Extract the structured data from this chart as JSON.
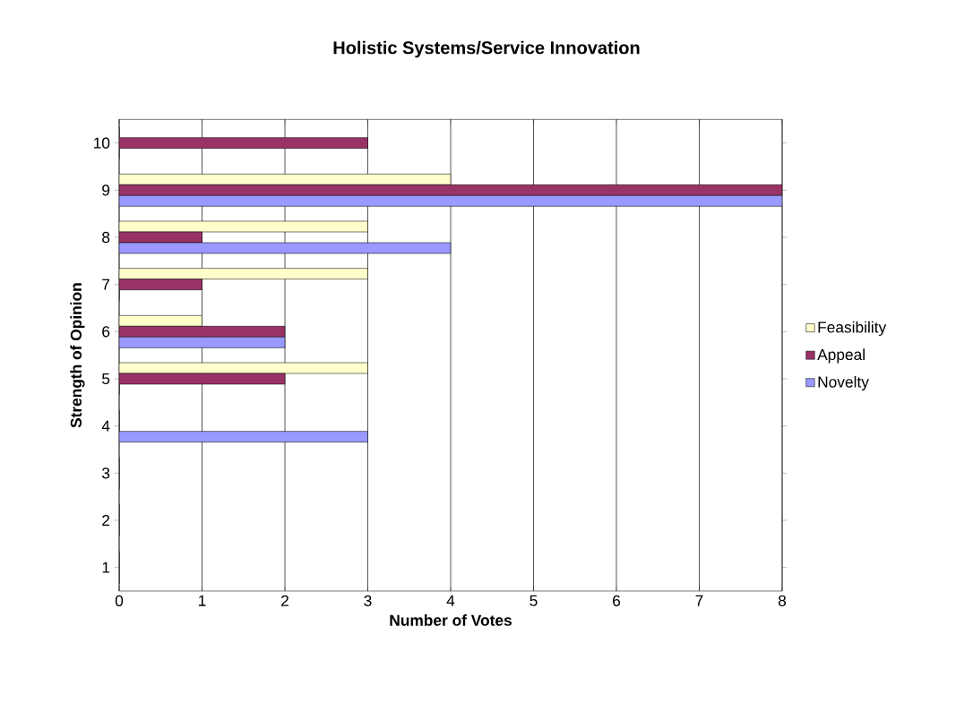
{
  "chart_data": {
    "type": "bar",
    "orientation": "horizontal",
    "title": "Holistic Systems/Service Innovation",
    "xlabel": "Number of Votes",
    "ylabel": "Strength of Opinion",
    "categories": [
      "10",
      "9",
      "8",
      "7",
      "6",
      "5",
      "4",
      "3",
      "2",
      "1"
    ],
    "series": [
      {
        "name": "Feasibility",
        "color": "#ffffcc",
        "values": [
          0,
          4,
          3,
          3,
          1,
          3,
          0,
          0,
          0,
          0
        ]
      },
      {
        "name": "Appeal",
        "color": "#993366",
        "values": [
          3,
          8,
          1,
          1,
          2,
          2,
          0,
          0,
          0,
          0
        ]
      },
      {
        "name": "Novelty",
        "color": "#9999ff",
        "values": [
          0,
          8,
          4,
          0,
          2,
          0,
          3,
          0,
          0,
          0
        ]
      }
    ],
    "xlim": [
      0,
      8
    ],
    "xticks": [
      0,
      1,
      2,
      3,
      4,
      5,
      6,
      7,
      8
    ],
    "grid": "x",
    "legend": "right"
  }
}
